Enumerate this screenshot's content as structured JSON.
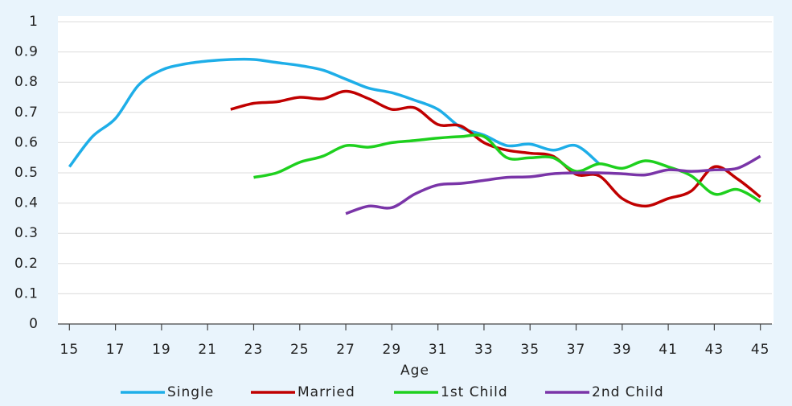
{
  "chart_data": {
    "type": "line",
    "x_label": "Age",
    "x": [
      15,
      16,
      17,
      18,
      19,
      20,
      21,
      22,
      23,
      24,
      25,
      26,
      27,
      28,
      29,
      30,
      31,
      32,
      33,
      34,
      35,
      36,
      37,
      38,
      39,
      40,
      41,
      42,
      43,
      44,
      45
    ],
    "series": [
      {
        "name": "Single",
        "color": "#1eaee8",
        "values": [
          0.52,
          0.62,
          0.68,
          0.79,
          0.84,
          0.86,
          0.87,
          0.875,
          0.875,
          0.865,
          0.855,
          0.84,
          0.81,
          0.78,
          0.765,
          0.74,
          0.71,
          0.65,
          0.625,
          0.59,
          0.595,
          0.575,
          0.59,
          0.53,
          null,
          null,
          null,
          null,
          null,
          null,
          null
        ]
      },
      {
        "name": "Married",
        "color": "#c00000",
        "values": [
          null,
          null,
          null,
          null,
          null,
          null,
          null,
          0.71,
          0.73,
          0.735,
          0.75,
          0.745,
          0.77,
          0.745,
          0.71,
          0.715,
          0.66,
          0.655,
          0.6,
          0.575,
          0.565,
          0.555,
          0.495,
          0.49,
          0.415,
          0.39,
          0.415,
          0.44,
          0.52,
          0.48,
          0.42
        ]
      },
      {
        "name": "1st Child",
        "color": "#1ed01e",
        "values": [
          null,
          null,
          null,
          null,
          null,
          null,
          null,
          null,
          0.485,
          0.5,
          0.535,
          0.555,
          0.59,
          0.585,
          0.6,
          0.607,
          0.615,
          0.62,
          0.62,
          0.55,
          0.55,
          0.55,
          0.505,
          0.53,
          0.515,
          0.54,
          0.52,
          0.49,
          0.43,
          0.445,
          0.405
        ]
      },
      {
        "name": "2nd Child",
        "color": "#7a35a8",
        "values": [
          null,
          null,
          null,
          null,
          null,
          null,
          null,
          null,
          null,
          null,
          null,
          null,
          0.365,
          0.39,
          0.385,
          0.43,
          0.46,
          0.465,
          0.475,
          0.485,
          0.487,
          0.497,
          0.5,
          0.5,
          0.497,
          0.493,
          0.51,
          0.505,
          0.51,
          0.515,
          0.555
        ]
      }
    ],
    "xlim": [
      14.5,
      45.5
    ],
    "xticks": [
      15,
      17,
      19,
      21,
      23,
      25,
      27,
      29,
      31,
      33,
      35,
      37,
      39,
      41,
      43,
      45
    ],
    "ylim": [
      0,
      1
    ],
    "yticks": [
      0,
      0.1,
      0.2,
      0.3,
      0.4,
      0.5,
      0.6,
      0.7,
      0.8,
      0.9,
      1
    ],
    "grid": true
  }
}
